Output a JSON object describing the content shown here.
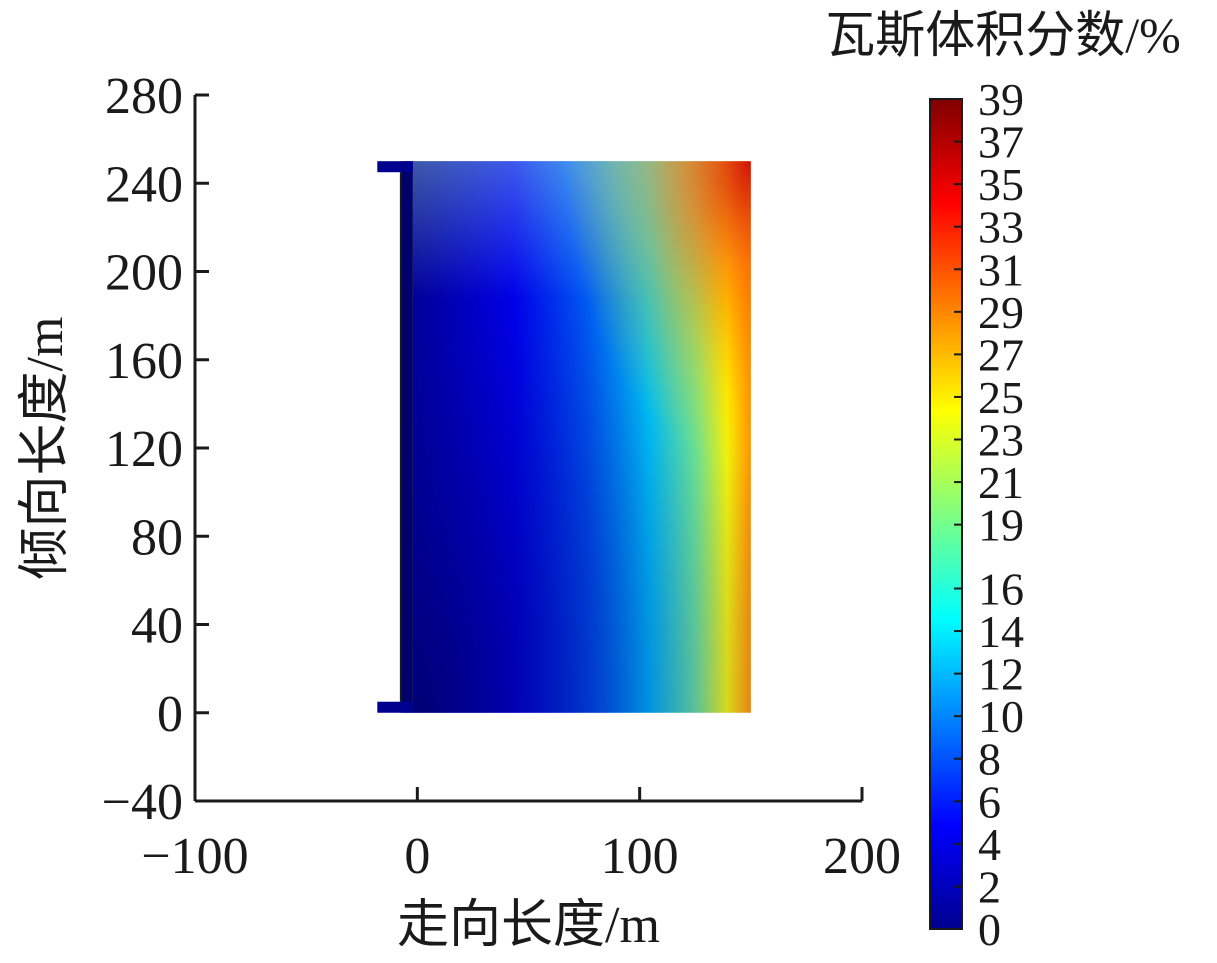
{
  "chart_data": {
    "type": "heatmap",
    "xlabel": "走向长度/m",
    "ylabel": "倾向长度/m",
    "xlim": [
      -100,
      200
    ],
    "ylim": [
      -40,
      280
    ],
    "x_ticks": [
      -100,
      0,
      100,
      200
    ],
    "y_ticks": [
      -40,
      0,
      40,
      80,
      120,
      160,
      200,
      240,
      280
    ],
    "x_tick_labels": [
      "−100",
      "0",
      "100",
      "200"
    ],
    "y_tick_labels": [
      "−40",
      "0",
      "40",
      "80",
      "120",
      "160",
      "200",
      "240",
      "280"
    ],
    "domain": {
      "panel_x": [
        -2,
        150
      ],
      "panel_y": [
        0,
        250
      ],
      "roadway_x": [
        -18,
        -2
      ],
      "roadway_y_bottom": [
        0,
        5
      ],
      "roadway_y_top": [
        245,
        250
      ]
    },
    "colorbar": {
      "title": "瓦斯体积分数/%",
      "range": [
        0,
        39
      ],
      "tick_values": [
        0,
        2,
        4,
        6,
        8,
        10,
        12,
        14,
        16,
        19,
        21,
        23,
        25,
        27,
        29,
        31,
        33,
        35,
        37,
        39
      ],
      "tick_labels": [
        "0",
        "2",
        "4",
        "6",
        "8",
        "10",
        "12",
        "14",
        "16",
        "19",
        "21",
        "23",
        "25",
        "27",
        "29",
        "31",
        "33",
        "35",
        "37",
        "39"
      ],
      "colormap": [
        "#00008f",
        "#0000ff",
        "#0080ff",
        "#00ffff",
        "#80ff80",
        "#ffff00",
        "#ff8000",
        "#ff0000",
        "#800000"
      ]
    }
  }
}
